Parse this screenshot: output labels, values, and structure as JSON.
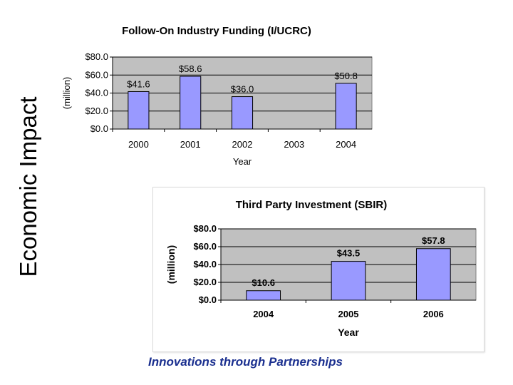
{
  "slide_title": "Economic Impact",
  "footer": "Innovations through Partnerships",
  "chart_data": [
    {
      "type": "bar",
      "title": "Follow-On Industry Funding (I/UCRC)",
      "xlabel": "Year",
      "ylabel": "(million)",
      "categories": [
        "2000",
        "2001",
        "2002",
        "2003",
        "2004"
      ],
      "values": [
        41.6,
        58.6,
        36.0,
        null,
        50.8
      ],
      "data_labels": [
        "$41.6",
        "$58.6",
        "$36.0",
        "",
        "$50.8"
      ],
      "yticks": [
        0,
        20,
        40,
        60,
        80
      ],
      "ytick_labels": [
        "$0.0",
        "$20.0",
        "$40.0",
        "$60.0",
        "$80.0"
      ],
      "ylim": [
        0,
        80
      ],
      "grid": true,
      "legend": "none",
      "colors": {
        "bar": "#9999ff",
        "bar_edge": "#000000",
        "plot_bg": "#c0c0c0"
      }
    },
    {
      "type": "bar",
      "title": "Third Party Investment (SBIR)",
      "xlabel": "Year",
      "ylabel": "(million)",
      "categories": [
        "2004",
        "2005",
        "2006"
      ],
      "values": [
        10.6,
        43.5,
        57.8
      ],
      "data_labels": [
        "$10.6",
        "$43.5",
        "$57.8"
      ],
      "yticks": [
        0,
        20,
        40,
        60,
        80
      ],
      "ytick_labels": [
        "$0.0",
        "$20.0",
        "$40.0",
        "$60.0",
        "$80.0"
      ],
      "ylim": [
        0,
        80
      ],
      "grid": true,
      "legend": "none",
      "colors": {
        "bar": "#9999ff",
        "bar_edge": "#000000",
        "plot_bg": "#c0c0c0"
      }
    }
  ]
}
